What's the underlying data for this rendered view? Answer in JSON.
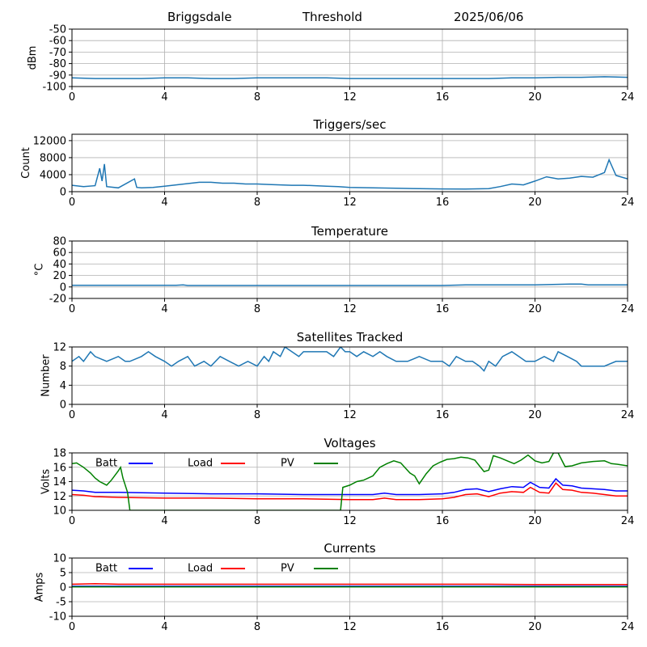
{
  "header": {
    "station": "Briggsdale",
    "mode": "Threshold",
    "date": "2025/06/06"
  },
  "chart_data": [
    {
      "type": "line",
      "title": "",
      "xlabel": "",
      "ylabel": "dBm",
      "xlim": [
        0,
        24
      ],
      "ylim": [
        -100,
        -50
      ],
      "x_ticks": [
        0,
        4,
        8,
        12,
        16,
        20,
        24
      ],
      "y_ticks": [
        -100,
        -90,
        -80,
        -70,
        -60,
        -50
      ],
      "grid": true,
      "series": [
        {
          "color": "#1f77b4",
          "x": [
            0,
            1,
            2,
            3,
            4,
            5,
            6,
            7,
            8,
            9,
            10,
            11,
            12,
            13,
            14,
            15,
            16,
            17,
            18,
            19,
            20,
            21,
            22,
            23,
            24
          ],
          "y": [
            -92.5,
            -93,
            -93,
            -93,
            -92.5,
            -92.5,
            -93,
            -93,
            -92.5,
            -92.5,
            -92.5,
            -92.5,
            -93,
            -93,
            -93,
            -93,
            -93,
            -93,
            -93,
            -92.5,
            -92.5,
            -92,
            -92,
            -91.5,
            -92
          ]
        }
      ]
    },
    {
      "type": "line",
      "title": "Triggers/sec",
      "xlabel": "",
      "ylabel": "Count",
      "xlim": [
        0,
        24
      ],
      "ylim": [
        0,
        13500
      ],
      "x_ticks": [
        0,
        4,
        8,
        12,
        16,
        20,
        24
      ],
      "y_ticks": [
        0,
        4000,
        8000,
        12000
      ],
      "grid": true,
      "series": [
        {
          "color": "#1f77b4",
          "x": [
            0,
            0.5,
            1,
            1.2,
            1.3,
            1.4,
            1.5,
            2,
            2.7,
            2.8,
            3,
            3.5,
            4,
            4.5,
            5,
            5.5,
            6,
            6.5,
            7,
            7.5,
            8,
            8.5,
            9,
            9.5,
            10,
            10.5,
            11,
            11.5,
            12,
            13,
            14,
            15,
            16,
            17,
            18,
            18.5,
            19,
            19.5,
            20,
            20.5,
            21,
            21.5,
            22,
            22.5,
            23,
            23.2,
            23.5,
            24
          ],
          "y": [
            1500,
            1200,
            1400,
            5500,
            2500,
            6500,
            1200,
            900,
            3000,
            1000,
            900,
            1000,
            1300,
            1600,
            1900,
            2200,
            2200,
            2000,
            2000,
            1800,
            1800,
            1700,
            1600,
            1500,
            1500,
            1400,
            1300,
            1200,
            1000,
            900,
            800,
            700,
            650,
            600,
            700,
            1200,
            1800,
            1600,
            2500,
            3500,
            3000,
            3200,
            3600,
            3400,
            4500,
            7500,
            3800,
            3000
          ]
        }
      ]
    },
    {
      "type": "line",
      "title": "Temperature",
      "xlabel": "",
      "ylabel": "°C",
      "xlim": [
        0,
        24
      ],
      "ylim": [
        -20,
        80
      ],
      "x_ticks": [
        0,
        4,
        8,
        12,
        16,
        20,
        24
      ],
      "y_ticks": [
        -20,
        0,
        20,
        40,
        60,
        80
      ],
      "grid": true,
      "series": [
        {
          "color": "#1f77b4",
          "x": [
            0,
            4.5,
            4.8,
            5,
            8,
            12,
            16,
            17,
            18,
            20,
            21.5,
            22,
            22.3,
            24
          ],
          "y": [
            3,
            3,
            3.5,
            2.5,
            2.5,
            2.5,
            2.5,
            3.5,
            3.5,
            3.5,
            5,
            5,
            3.5,
            3.5
          ]
        }
      ]
    },
    {
      "type": "line",
      "title": "Satellites Tracked",
      "xlabel": "",
      "ylabel": "Number",
      "xlim": [
        0,
        24
      ],
      "ylim": [
        0,
        12
      ],
      "x_ticks": [
        0,
        4,
        8,
        12,
        16,
        20,
        24
      ],
      "y_ticks": [
        0,
        4,
        8,
        12
      ],
      "grid": true,
      "series": [
        {
          "color": "#1f77b4",
          "x": [
            0,
            0.3,
            0.5,
            0.8,
            1,
            1.5,
            2,
            2.3,
            2.5,
            3,
            3.3,
            3.6,
            4,
            4.3,
            4.6,
            5,
            5.3,
            5.7,
            6,
            6.4,
            6.8,
            7.2,
            7.6,
            8,
            8.3,
            8.5,
            8.7,
            9,
            9.2,
            9.5,
            9.8,
            10,
            10.5,
            11,
            11.3,
            11.6,
            11.8,
            12,
            12.3,
            12.6,
            13,
            13.3,
            13.6,
            14,
            14.5,
            15,
            15.5,
            16,
            16.3,
            16.6,
            17,
            17.3,
            17.6,
            17.8,
            18,
            18.3,
            18.6,
            19,
            19.3,
            19.6,
            20,
            20.4,
            20.8,
            21,
            21.4,
            21.8,
            22,
            22.5,
            23,
            23.5,
            24
          ],
          "y": [
            9,
            10,
            9,
            11,
            10,
            9,
            10,
            9,
            9,
            10,
            11,
            10,
            9,
            8,
            9,
            10,
            8,
            9,
            8,
            10,
            9,
            8,
            9,
            8,
            10,
            9,
            11,
            10,
            12,
            11,
            10,
            11,
            11,
            11,
            10,
            12,
            11,
            11,
            10,
            11,
            10,
            11,
            10,
            9,
            9,
            10,
            9,
            9,
            8,
            10,
            9,
            9,
            8,
            7,
            9,
            8,
            10,
            11,
            10,
            9,
            9,
            10,
            9,
            11,
            10,
            9,
            8,
            8,
            8,
            9,
            9
          ]
        }
      ]
    },
    {
      "type": "line",
      "title": "Voltages",
      "xlabel": "",
      "ylabel": "Volts",
      "xlim": [
        0,
        24
      ],
      "ylim": [
        10,
        18
      ],
      "x_ticks": [
        0,
        4,
        8,
        12,
        16,
        20,
        24
      ],
      "y_ticks": [
        10,
        12,
        14,
        16,
        18
      ],
      "grid": true,
      "legend": [
        "Batt",
        "Load",
        "PV"
      ],
      "series": [
        {
          "name": "Batt",
          "color": "#0000ff",
          "x": [
            0,
            0.5,
            1,
            2,
            4,
            6,
            8,
            10,
            12,
            13,
            13.5,
            14,
            15,
            16,
            16.5,
            17,
            17.5,
            18,
            18.5,
            19,
            19.5,
            19.8,
            20.2,
            20.6,
            20.9,
            21.2,
            21.6,
            22,
            22.5,
            23,
            23.5,
            24
          ],
          "y": [
            12.8,
            12.7,
            12.5,
            12.5,
            12.4,
            12.3,
            12.3,
            12.2,
            12.2,
            12.2,
            12.4,
            12.2,
            12.2,
            12.3,
            12.5,
            12.9,
            13.0,
            12.6,
            13.0,
            13.3,
            13.2,
            13.9,
            13.2,
            13.1,
            14.4,
            13.5,
            13.4,
            13.1,
            13.0,
            12.9,
            12.7,
            12.7
          ]
        },
        {
          "name": "Load",
          "color": "#ff0000",
          "x": [
            0,
            0.5,
            1,
            2,
            4,
            6,
            8,
            10,
            12,
            13,
            13.5,
            14,
            15,
            16,
            16.5,
            17,
            17.5,
            18,
            18.5,
            19,
            19.5,
            19.8,
            20.2,
            20.6,
            20.9,
            21.2,
            21.6,
            22,
            22.5,
            23,
            23.5,
            24
          ],
          "y": [
            12.2,
            12.1,
            11.9,
            11.8,
            11.7,
            11.7,
            11.6,
            11.6,
            11.5,
            11.5,
            11.7,
            11.5,
            11.5,
            11.6,
            11.8,
            12.2,
            12.3,
            11.9,
            12.4,
            12.6,
            12.5,
            13.2,
            12.5,
            12.4,
            13.8,
            12.9,
            12.8,
            12.5,
            12.4,
            12.2,
            12.0,
            12.0
          ]
        },
        {
          "name": "PV",
          "color": "#008000",
          "x": [
            0,
            0.2,
            0.5,
            0.8,
            1,
            1.2,
            1.5,
            1.7,
            2,
            2.1,
            2.2,
            2.4,
            2.5,
            11.6,
            11.7,
            12,
            12.3,
            12.6,
            13,
            13.3,
            13.6,
            13.9,
            14.2,
            14.6,
            14.8,
            15,
            15.3,
            15.6,
            15.9,
            16.2,
            16.5,
            16.8,
            17.1,
            17.4,
            17.8,
            18,
            18.2,
            18.5,
            18.8,
            19.1,
            19.4,
            19.7,
            20,
            20.3,
            20.6,
            20.8,
            21,
            21.3,
            21.6,
            22,
            22.5,
            23,
            23.3,
            23.6,
            24
          ],
          "y": [
            16.5,
            16.6,
            16.0,
            15.2,
            14.5,
            14.0,
            13.5,
            14.2,
            15.5,
            16.0,
            14.5,
            12.5,
            10,
            10,
            13.2,
            13.5,
            14.0,
            14.2,
            14.8,
            16.0,
            16.5,
            16.9,
            16.6,
            15.2,
            14.8,
            13.7,
            15.1,
            16.2,
            16.7,
            17.1,
            17.2,
            17.4,
            17.3,
            17.0,
            15.4,
            15.6,
            17.6,
            17.3,
            16.9,
            16.5,
            17.0,
            17.7,
            16.9,
            16.6,
            16.8,
            18.0,
            18.0,
            16.1,
            16.2,
            16.6,
            16.8,
            16.9,
            16.5,
            16.4,
            16.2
          ]
        }
      ]
    },
    {
      "type": "line",
      "title": "Currents",
      "xlabel": "",
      "ylabel": "Amps",
      "xlim": [
        0,
        24
      ],
      "ylim": [
        -10,
        10
      ],
      "x_ticks": [
        0,
        4,
        8,
        12,
        16,
        20,
        24
      ],
      "y_ticks": [
        -10,
        -5,
        0,
        5,
        10
      ],
      "grid": true,
      "legend": [
        "Batt",
        "Load",
        "PV"
      ],
      "series": [
        {
          "name": "Batt",
          "color": "#0000ff",
          "x": [
            0,
            4,
            8,
            12,
            16,
            20,
            24
          ],
          "y": [
            0.3,
            0.3,
            0.3,
            0.3,
            0.3,
            0.3,
            0.3
          ]
        },
        {
          "name": "Load",
          "color": "#ff0000",
          "x": [
            0,
            1,
            2,
            4,
            8,
            12,
            16,
            18,
            20,
            22,
            24
          ],
          "y": [
            1.0,
            1.2,
            1.0,
            1.0,
            1.0,
            1.0,
            1.0,
            1.0,
            0.9,
            0.9,
            0.9
          ]
        },
        {
          "name": "PV",
          "color": "#008000",
          "x": [
            0,
            4,
            8,
            12,
            16,
            20,
            24
          ],
          "y": [
            0.1,
            0.1,
            0.1,
            0.1,
            0.1,
            0.1,
            0.1
          ]
        }
      ]
    }
  ]
}
